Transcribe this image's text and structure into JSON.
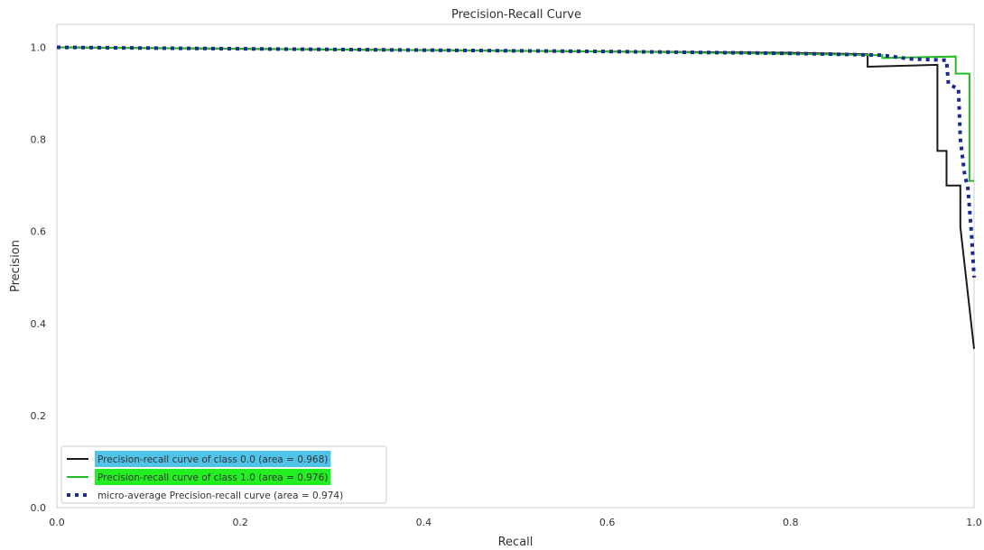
{
  "chart_data": {
    "type": "line",
    "title": "Precision-Recall Curve",
    "xlabel": "Recall",
    "ylabel": "Precision",
    "xlim": [
      0.0,
      1.0
    ],
    "ylim": [
      0.0,
      1.05
    ],
    "xticks": [
      "0.0",
      "0.2",
      "0.4",
      "0.6",
      "0.8",
      "1.0"
    ],
    "yticks": [
      "0.0",
      "0.2",
      "0.4",
      "0.6",
      "0.8",
      "1.0"
    ],
    "grid": false,
    "legend_position": "lower-left",
    "series": [
      {
        "name": "Precision-recall curve of class 0.0 (area = 0.968)",
        "color": "#1a1a1a",
        "style": "solid",
        "highlight": "#4fc3e8",
        "x": [
          0.0,
          0.2,
          0.4,
          0.6,
          0.8,
          0.884,
          0.884,
          0.96,
          0.96,
          0.97,
          0.97,
          0.985,
          0.985,
          1.0
        ],
        "y": [
          1.0,
          0.997,
          0.994,
          0.991,
          0.988,
          0.985,
          0.958,
          0.962,
          0.775,
          0.775,
          0.7,
          0.7,
          0.61,
          0.345
        ]
      },
      {
        "name": "Precision-recall curve of class 1.0 (area = 0.976)",
        "color": "#22bb22",
        "style": "solid",
        "highlight": "#22ee22",
        "x": [
          0.0,
          0.2,
          0.4,
          0.6,
          0.8,
          0.9,
          0.9,
          0.98,
          0.98,
          0.995,
          0.995,
          1.0
        ],
        "y": [
          1.0,
          0.997,
          0.994,
          0.991,
          0.986,
          0.983,
          0.977,
          0.98,
          0.943,
          0.943,
          0.71,
          0.71
        ]
      },
      {
        "name": "micro-average Precision-recall curve (area = 0.974)",
        "color": "#1a2a8f",
        "style": "dotted",
        "highlight": "",
        "x": [
          0.0,
          0.2,
          0.4,
          0.6,
          0.8,
          0.9,
          0.93,
          0.97,
          0.972,
          0.983,
          0.985,
          0.99,
          0.993,
          0.997,
          1.0
        ],
        "y": [
          1.0,
          0.997,
          0.994,
          0.991,
          0.987,
          0.983,
          0.975,
          0.972,
          0.92,
          0.91,
          0.8,
          0.72,
          0.7,
          0.6,
          0.5
        ]
      }
    ]
  }
}
